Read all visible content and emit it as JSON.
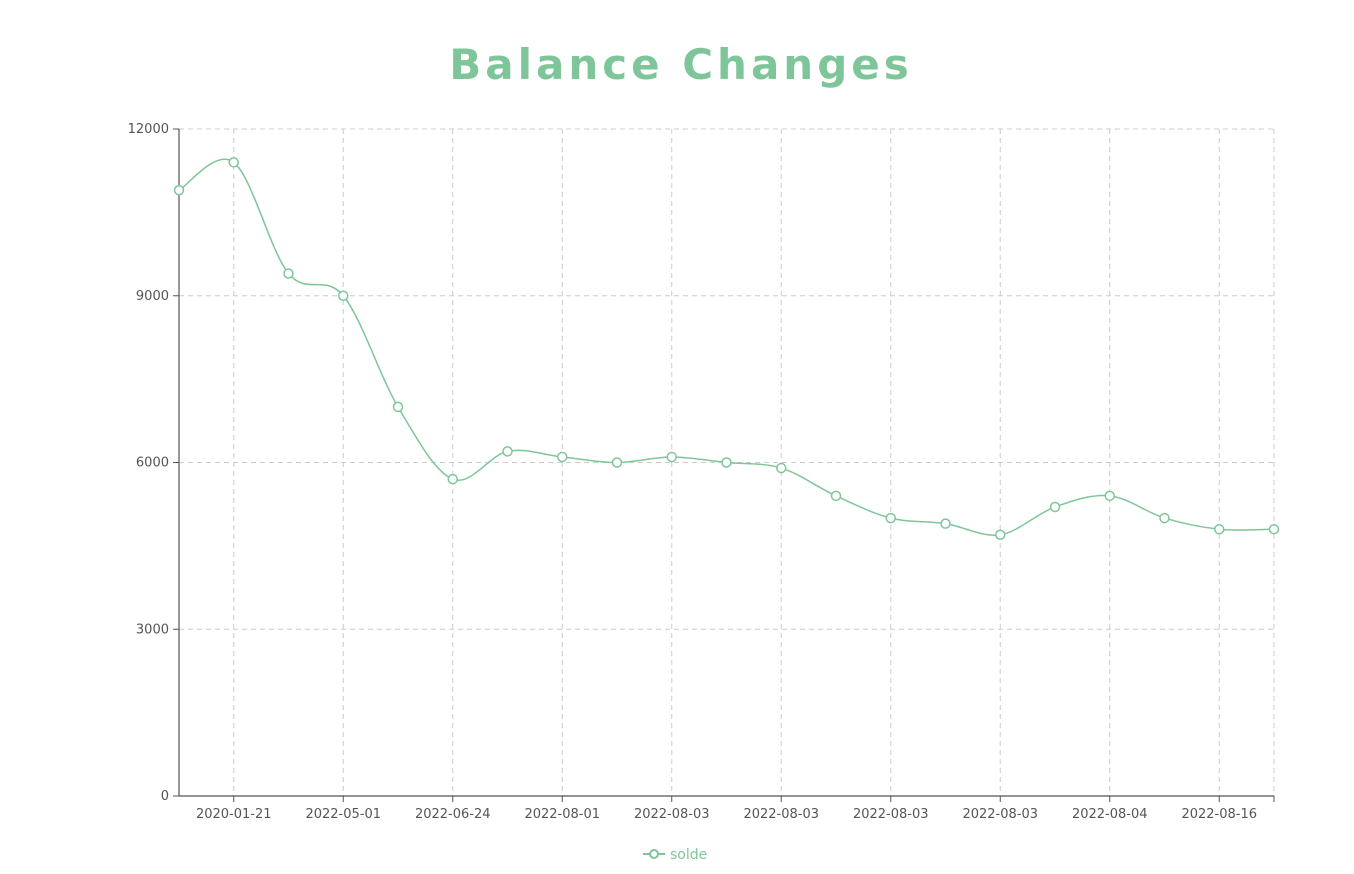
{
  "chart_data": {
    "type": "line",
    "title": "Balance Changes",
    "color": "#7ec699",
    "smooth": true,
    "grid": true,
    "legend_position": "bottom-center",
    "xlabel": "",
    "ylabel": "",
    "ylim": [
      0,
      12000
    ],
    "y_ticks": [
      0,
      3000,
      6000,
      9000,
      12000
    ],
    "x_tick_labels": [
      "2020-01-21",
      "2022-05-01",
      "2022-06-24",
      "2022-08-01",
      "2022-08-03",
      "2022-08-03",
      "2022-08-03",
      "2022-08-03",
      "2022-08-04",
      "2022-08-16"
    ],
    "series": [
      {
        "name": "solde",
        "values": [
          10900,
          11400,
          9400,
          9000,
          7000,
          5700,
          6200,
          6100,
          6000,
          6100,
          6000,
          5900,
          5400,
          5000,
          4900,
          4700,
          5200,
          5400,
          5000,
          4800,
          4800
        ]
      }
    ]
  }
}
